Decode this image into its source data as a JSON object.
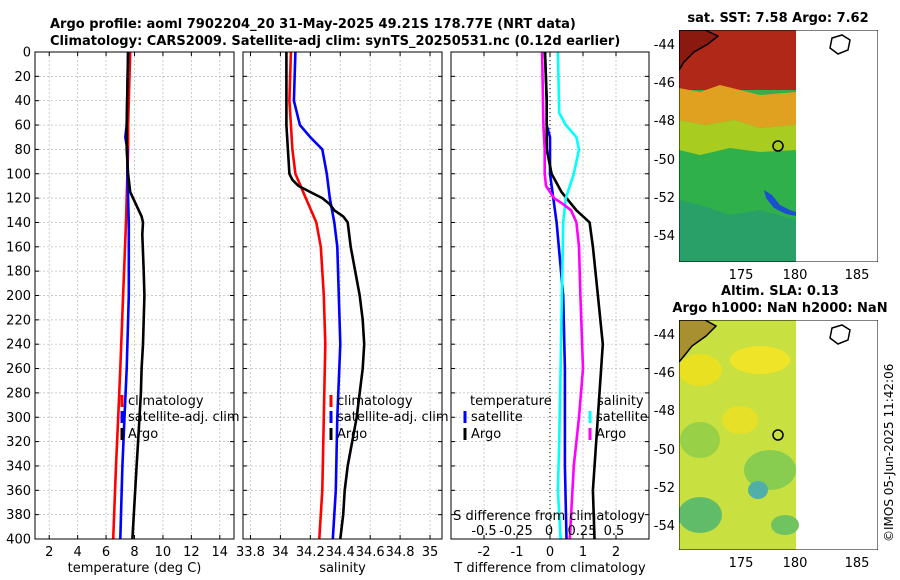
{
  "header": {
    "title_line1": "Argo profile: aoml 7902204_20 31-May-2025 49.21S 178.77E (NRT data)",
    "title_line2": "Climatology: CARS2009. Satellite-adj clim: synTS_20250531.nc (0.12d earlier)"
  },
  "colors": {
    "climatology": "#ff0000",
    "satellite": "#0000ff",
    "argo": "#000000",
    "sat_salinity": "#00ffff",
    "argo_salinity": "#ff00ff"
  },
  "depth_ticks": [
    0,
    20,
    40,
    60,
    80,
    100,
    120,
    140,
    160,
    180,
    200,
    220,
    240,
    260,
    280,
    300,
    320,
    340,
    360,
    380,
    400
  ],
  "chart_data": [
    {
      "type": "line",
      "id": "temperature",
      "xlabel": "temperature (deg C)",
      "ylabel": "",
      "xlim": [
        1,
        15
      ],
      "ylim": [
        400,
        0
      ],
      "xticks": [
        2,
        4,
        6,
        8,
        10,
        12,
        14
      ],
      "series": [
        {
          "name": "climatology",
          "color": "#ff0000",
          "depth": [
            0,
            60,
            80,
            100,
            140,
            200,
            260,
            300,
            340,
            400
          ],
          "values": [
            7.7,
            7.55,
            7.55,
            7.5,
            7.4,
            7.2,
            7.0,
            6.85,
            6.7,
            6.5
          ]
        },
        {
          "name": "satellite-adj. clim",
          "color": "#0000ff",
          "depth": [
            0,
            60,
            70,
            80,
            100,
            140,
            200,
            260,
            300,
            340,
            400
          ],
          "values": [
            7.55,
            7.45,
            7.35,
            7.5,
            7.5,
            7.6,
            7.6,
            7.45,
            7.3,
            7.15,
            7.0
          ]
        },
        {
          "name": "Argo",
          "color": "#000000",
          "depth": [
            0,
            60,
            80,
            100,
            115,
            125,
            135,
            140,
            150,
            180,
            200,
            220,
            240,
            260,
            280,
            300,
            320,
            340,
            360,
            380,
            400
          ],
          "values": [
            7.55,
            7.45,
            7.45,
            7.55,
            7.7,
            8.1,
            8.5,
            8.6,
            8.55,
            8.65,
            8.7,
            8.65,
            8.6,
            8.5,
            8.45,
            8.35,
            8.25,
            8.15,
            8.05,
            7.95,
            7.85
          ]
        }
      ],
      "legend": [
        "climatology",
        "satellite-adj. clim",
        "Argo"
      ]
    },
    {
      "type": "line",
      "id": "salinity",
      "xlabel": "salinity",
      "xlim": [
        33.75,
        35.08
      ],
      "ylim": [
        400,
        0
      ],
      "xticks": [
        33.8,
        34,
        34.2,
        34.4,
        34.6,
        34.8,
        35
      ],
      "xticklabels": [
        "33.8",
        "34",
        "34.2",
        "34.4",
        "34.6",
        "34.8",
        "35"
      ],
      "series": [
        {
          "name": "climatology",
          "color": "#ff0000",
          "depth": [
            0,
            40,
            60,
            80,
            100,
            120,
            140,
            160,
            180,
            200,
            240,
            300,
            360,
            400
          ],
          "values": [
            34.07,
            34.06,
            34.07,
            34.08,
            34.1,
            34.17,
            34.24,
            34.27,
            34.28,
            34.29,
            34.3,
            34.29,
            34.28,
            34.26
          ]
        },
        {
          "name": "satellite-adj. clim",
          "color": "#0000ff",
          "depth": [
            0,
            40,
            60,
            70,
            80,
            100,
            120,
            140,
            160,
            200,
            240,
            300,
            360,
            400
          ],
          "values": [
            34.1,
            34.09,
            34.13,
            34.2,
            34.28,
            34.31,
            34.33,
            34.36,
            34.38,
            34.39,
            34.4,
            34.38,
            34.37,
            34.35
          ]
        },
        {
          "name": "Argo",
          "color": "#000000",
          "depth": [
            0,
            60,
            80,
            100,
            105,
            110,
            115,
            120,
            125,
            130,
            135,
            140,
            160,
            180,
            200,
            220,
            240,
            260,
            280,
            300,
            320,
            340,
            360,
            380,
            400
          ],
          "values": [
            34.04,
            34.04,
            34.05,
            34.06,
            34.08,
            34.12,
            34.2,
            34.28,
            34.33,
            34.36,
            34.42,
            34.45,
            34.47,
            34.5,
            34.53,
            34.55,
            34.56,
            34.55,
            34.53,
            34.51,
            34.48,
            34.45,
            34.43,
            34.42,
            34.4
          ]
        }
      ],
      "legend": [
        "climatology",
        "satellite-adj. clim",
        "Argo"
      ]
    },
    {
      "type": "line",
      "id": "difference",
      "xlabel": "T difference from climatology",
      "xlim": [
        -3,
        3
      ],
      "ylim": [
        400,
        0
      ],
      "xticks": [
        -2,
        -1,
        0,
        1,
        2
      ],
      "top_axis_label": "S difference from climatology",
      "top_ticklabels": [
        "-0.5",
        "-0.25",
        "0",
        "0.25",
        "0.5"
      ],
      "series": [
        {
          "name": "temperature satellite",
          "color": "#0000ff",
          "depth": [
            0,
            40,
            60,
            70,
            80,
            100,
            140,
            200,
            260,
            300,
            340,
            400
          ],
          "values": [
            -0.15,
            -0.1,
            -0.1,
            0,
            0.0,
            0.0,
            0.2,
            0.4,
            0.45,
            0.45,
            0.45,
            0.5
          ]
        },
        {
          "name": "temperature Argo",
          "color": "#000000",
          "depth": [
            0,
            40,
            60,
            80,
            100,
            115,
            130,
            140,
            160,
            200,
            240,
            280,
            320,
            360,
            400
          ],
          "values": [
            -0.15,
            -0.1,
            -0.1,
            -0.1,
            0.05,
            0.35,
            0.8,
            1.2,
            1.3,
            1.45,
            1.6,
            1.5,
            1.4,
            1.3,
            1.35
          ]
        },
        {
          "name": "salinity satellite",
          "color": "#00ffff",
          "depth": [
            0,
            50,
            60,
            70,
            80,
            100,
            120,
            140,
            200,
            260,
            320,
            360,
            400
          ],
          "values": [
            0.06,
            0.07,
            0.12,
            0.2,
            0.22,
            0.18,
            0.12,
            0.1,
            0.09,
            0.08,
            0.07,
            0.06,
            0.08
          ]
        },
        {
          "name": "salinity Argo",
          "color": "#ff00ff",
          "depth": [
            0,
            60,
            80,
            100,
            110,
            120,
            125,
            130,
            140,
            160,
            200,
            260,
            300,
            340,
            400
          ],
          "values": [
            -0.06,
            -0.05,
            -0.04,
            -0.04,
            -0.03,
            0.03,
            0.1,
            0.16,
            0.2,
            0.22,
            0.23,
            0.25,
            0.22,
            0.18,
            0.15
          ]
        }
      ],
      "legend_left_title": "temperature",
      "legend_right_title": "salinity",
      "legend_left": [
        "satellite",
        "Argo"
      ],
      "legend_right": [
        "satellite",
        "Argo"
      ]
    }
  ],
  "maps": {
    "sst_title": "sat. SST: 7.58 Argo: 7.62",
    "sla_title_line1": "Altim. SLA: 0.13",
    "sla_title_line2": "Argo h1000: NaN h2000: NaN",
    "lat_ticks": [
      "-44",
      "-46",
      "-48",
      "-50",
      "-52",
      "-54"
    ],
    "lon_ticks": [
      "175",
      "180",
      "185"
    ],
    "argo_location": {
      "lon": 178.77,
      "lat": -49.21
    }
  },
  "credit": "©IMOS 05-Jun-2025 11:42:06"
}
